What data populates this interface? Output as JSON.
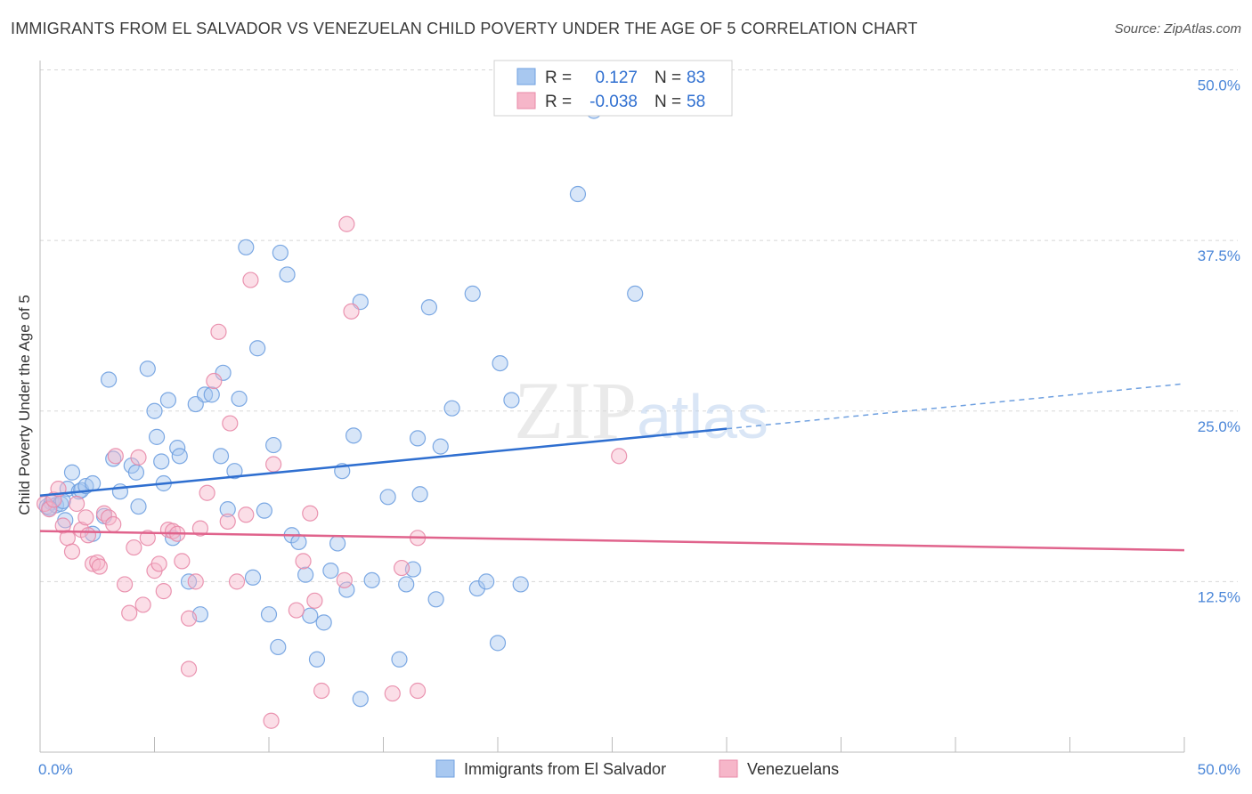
{
  "header": {
    "title": "IMMIGRANTS FROM EL SALVADOR VS VENEZUELAN CHILD POVERTY UNDER THE AGE OF 5 CORRELATION CHART",
    "source": "Source: ZipAtlas.com"
  },
  "watermark": "ZIPatlas",
  "legend_top": {
    "rows": [
      {
        "r_label": "R =",
        "r_value": "0.127",
        "n_label": "N =",
        "n_value": "83",
        "color": "#a8c8f0"
      },
      {
        "r_label": "R =",
        "r_value": "-0.038",
        "n_label": "N =",
        "n_value": "58",
        "color": "#f6b6c9"
      }
    ]
  },
  "chart_data": {
    "type": "scatter",
    "title": "IMMIGRANTS FROM EL SALVADOR VS VENEZUELAN CHILD POVERTY UNDER THE AGE OF 5 CORRELATION CHART",
    "xlabel": "",
    "ylabel": "Child Poverty Under the Age of 5",
    "xlim": [
      0,
      50
    ],
    "ylim": [
      0,
      50
    ],
    "x_tick_labels": [
      "0.0%",
      "50.0%"
    ],
    "y_tick_labels": [
      "12.5%",
      "25.0%",
      "37.5%",
      "50.0%"
    ],
    "y_ticks": [
      12.5,
      25,
      37.5,
      50
    ],
    "grid": true,
    "legend_position": "bottom",
    "series": [
      {
        "name": "Immigrants from El Salvador",
        "color": "#6fa0e0",
        "fill": "#a8c8f0",
        "trend": {
          "x0": 0,
          "y0": 18.8,
          "x1": 30,
          "y1": 23.7,
          "dash_to_x": 50,
          "dash_to_y": 27.0
        },
        "points": [
          [
            0.3,
            18.0
          ],
          [
            0.5,
            18.3
          ],
          [
            0.7,
            18.1
          ],
          [
            0.9,
            18.2
          ],
          [
            1.2,
            19.3
          ],
          [
            1.4,
            20.5
          ],
          [
            1.7,
            19.1
          ],
          [
            1.8,
            19.2
          ],
          [
            2.0,
            19.5
          ],
          [
            2.3,
            19.7
          ],
          [
            1.1,
            17.0
          ],
          [
            2.3,
            16.0
          ],
          [
            2.8,
            17.3
          ],
          [
            3.0,
            27.3
          ],
          [
            3.5,
            19.1
          ],
          [
            3.2,
            21.5
          ],
          [
            4.0,
            21.0
          ],
          [
            4.2,
            20.5
          ],
          [
            4.3,
            18.0
          ],
          [
            4.7,
            28.1
          ],
          [
            5.0,
            25.0
          ],
          [
            5.1,
            23.1
          ],
          [
            5.3,
            21.3
          ],
          [
            5.4,
            19.7
          ],
          [
            5.6,
            25.8
          ],
          [
            5.8,
            15.7
          ],
          [
            6.0,
            22.3
          ],
          [
            6.1,
            21.7
          ],
          [
            6.5,
            12.5
          ],
          [
            6.8,
            25.5
          ],
          [
            7.0,
            10.1
          ],
          [
            7.2,
            26.2
          ],
          [
            7.5,
            26.2
          ],
          [
            7.9,
            21.7
          ],
          [
            8.0,
            27.8
          ],
          [
            8.2,
            17.8
          ],
          [
            8.5,
            20.6
          ],
          [
            8.7,
            25.9
          ],
          [
            9.0,
            37.0
          ],
          [
            9.3,
            12.8
          ],
          [
            9.5,
            29.6
          ],
          [
            9.8,
            17.7
          ],
          [
            10.0,
            10.1
          ],
          [
            10.2,
            22.5
          ],
          [
            10.4,
            7.7
          ],
          [
            10.5,
            36.6
          ],
          [
            10.8,
            35.0
          ],
          [
            11.0,
            15.9
          ],
          [
            11.3,
            15.4
          ],
          [
            11.6,
            13.0
          ],
          [
            11.8,
            10.0
          ],
          [
            12.1,
            6.8
          ],
          [
            12.4,
            9.5
          ],
          [
            12.7,
            13.3
          ],
          [
            13.0,
            15.3
          ],
          [
            13.2,
            20.6
          ],
          [
            13.4,
            11.9
          ],
          [
            13.7,
            23.2
          ],
          [
            14.0,
            33.0
          ],
          [
            14.5,
            12.6
          ],
          [
            15.2,
            18.7
          ],
          [
            15.7,
            6.8
          ],
          [
            16.0,
            12.3
          ],
          [
            16.3,
            13.4
          ],
          [
            16.5,
            23.0
          ],
          [
            16.6,
            18.9
          ],
          [
            17.0,
            32.6
          ],
          [
            17.3,
            11.2
          ],
          [
            17.5,
            22.4
          ],
          [
            18.0,
            25.2
          ],
          [
            18.9,
            33.6
          ],
          [
            19.1,
            12.0
          ],
          [
            19.5,
            12.5
          ],
          [
            20.0,
            8.0
          ],
          [
            20.1,
            28.5
          ],
          [
            20.6,
            25.8
          ],
          [
            21.0,
            12.3
          ],
          [
            23.5,
            40.9
          ],
          [
            24.2,
            47.0
          ],
          [
            26.0,
            33.6
          ],
          [
            0.4,
            17.9
          ],
          [
            1.0,
            18.4
          ],
          [
            14.0,
            3.9
          ]
        ]
      },
      {
        "name": "Venezuelans",
        "color": "#e88aa8",
        "fill": "#f6b6c9",
        "trend": {
          "x0": 0,
          "y0": 16.2,
          "x1": 50,
          "y1": 14.8
        },
        "points": [
          [
            0.2,
            18.2
          ],
          [
            0.4,
            17.8
          ],
          [
            0.6,
            18.5
          ],
          [
            0.8,
            19.3
          ],
          [
            1.0,
            16.6
          ],
          [
            1.2,
            15.7
          ],
          [
            1.4,
            14.7
          ],
          [
            1.6,
            18.2
          ],
          [
            1.8,
            16.3
          ],
          [
            2.0,
            17.2
          ],
          [
            2.1,
            15.9
          ],
          [
            2.3,
            13.8
          ],
          [
            2.5,
            13.9
          ],
          [
            2.6,
            13.6
          ],
          [
            2.8,
            17.5
          ],
          [
            3.0,
            17.2
          ],
          [
            3.2,
            16.7
          ],
          [
            3.3,
            21.7
          ],
          [
            3.7,
            12.3
          ],
          [
            3.9,
            10.2
          ],
          [
            4.1,
            15.0
          ],
          [
            4.3,
            21.6
          ],
          [
            4.5,
            10.8
          ],
          [
            4.7,
            15.7
          ],
          [
            5.0,
            13.3
          ],
          [
            5.2,
            13.8
          ],
          [
            5.4,
            11.8
          ],
          [
            5.6,
            16.3
          ],
          [
            5.8,
            16.2
          ],
          [
            6.0,
            16.0
          ],
          [
            6.2,
            14.0
          ],
          [
            6.5,
            9.8
          ],
          [
            6.5,
            6.1
          ],
          [
            6.8,
            12.5
          ],
          [
            7.0,
            16.4
          ],
          [
            7.3,
            19.0
          ],
          [
            7.6,
            27.2
          ],
          [
            7.8,
            30.8
          ],
          [
            8.2,
            16.9
          ],
          [
            8.3,
            24.1
          ],
          [
            8.6,
            12.5
          ],
          [
            9.0,
            17.4
          ],
          [
            9.2,
            34.6
          ],
          [
            10.2,
            21.1
          ],
          [
            10.1,
            2.3
          ],
          [
            11.2,
            10.4
          ],
          [
            11.5,
            14.0
          ],
          [
            11.8,
            17.5
          ],
          [
            12.0,
            11.1
          ],
          [
            12.3,
            4.5
          ],
          [
            13.3,
            12.6
          ],
          [
            13.6,
            32.3
          ],
          [
            13.4,
            38.7
          ],
          [
            15.4,
            4.3
          ],
          [
            15.8,
            13.5
          ],
          [
            16.5,
            15.7
          ],
          [
            16.5,
            4.5
          ],
          [
            25.3,
            21.7
          ]
        ]
      }
    ]
  },
  "bottom_legend": {
    "items": [
      {
        "label": "Immigrants from El Salvador",
        "color": "#a8c8f0",
        "stroke": "#6fa0e0"
      },
      {
        "label": "Venezuelans",
        "color": "#f6b6c9",
        "stroke": "#e88aa8"
      }
    ]
  }
}
